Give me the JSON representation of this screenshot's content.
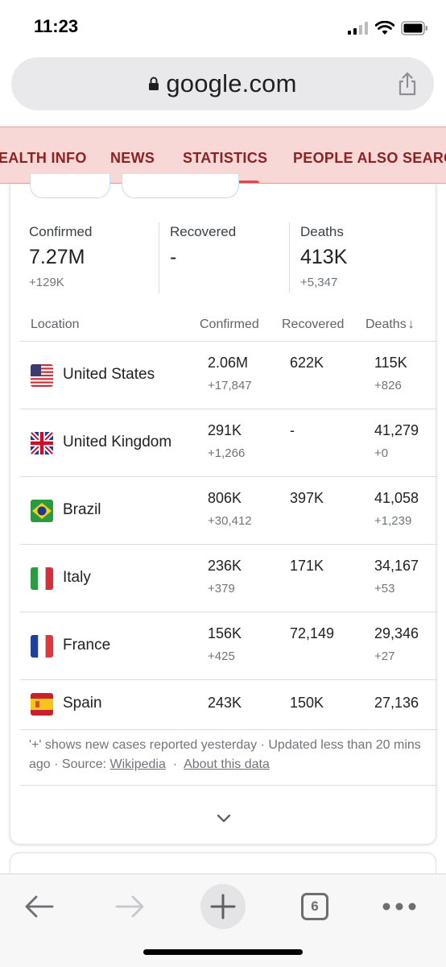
{
  "status_bar": {
    "time": "11:23"
  },
  "url_bar": {
    "domain": "google.com"
  },
  "tabs": [
    {
      "label": "EALTH INFO"
    },
    {
      "label": "NEWS"
    },
    {
      "label": "STATISTICS",
      "active": true
    },
    {
      "label": "PEOPLE ALSO SEARC"
    }
  ],
  "summary": {
    "confirmed": {
      "label": "Confirmed",
      "value": "7.27M",
      "delta": "+129K"
    },
    "recovered": {
      "label": "Recovered",
      "value": "-",
      "delta": ""
    },
    "deaths": {
      "label": "Deaths",
      "value": "413K",
      "delta": "+5,347"
    }
  },
  "table": {
    "headers": {
      "location": "Location",
      "confirmed": "Confirmed",
      "recovered": "Recovered",
      "deaths": "Deaths"
    },
    "sort_indicator": "↓",
    "rows": [
      {
        "country": "United States",
        "flag": "us-flag",
        "confirmed": "2.06M",
        "confirmed_delta": "+17,847",
        "recovered": "622K",
        "deaths": "115K",
        "deaths_delta": "+826"
      },
      {
        "country": "United Kingdom",
        "flag": "uk-flag",
        "confirmed": "291K",
        "confirmed_delta": "+1,266",
        "recovered": "-",
        "deaths": "41,279",
        "deaths_delta": "+0"
      },
      {
        "country": "Brazil",
        "flag": "brazil-flag",
        "confirmed": "806K",
        "confirmed_delta": "+30,412",
        "recovered": "397K",
        "deaths": "41,058",
        "deaths_delta": "+1,239"
      },
      {
        "country": "Italy",
        "flag": "italy-flag",
        "confirmed": "236K",
        "confirmed_delta": "+379",
        "recovered": "171K",
        "deaths": "34,167",
        "deaths_delta": "+53"
      },
      {
        "country": "France",
        "flag": "france-flag",
        "confirmed": "156K",
        "confirmed_delta": "+425",
        "recovered": "72,149",
        "deaths": "29,346",
        "deaths_delta": "+27"
      },
      {
        "country": "Spain",
        "flag": "spain-flag",
        "confirmed": "243K",
        "confirmed_delta": "",
        "recovered": "150K",
        "deaths": "27,136",
        "deaths_delta": ""
      }
    ]
  },
  "footnote": {
    "text": "'+' shows new cases reported yesterday · Updated less than 20 mins ago  ·  Source: ",
    "source_link": "Wikipedia",
    "separator": "  ·  ",
    "about_link": "About this data"
  },
  "toolbar": {
    "tab_count": "6"
  },
  "colors": {
    "tab_bar_bg": "#f8d7d7",
    "tab_text": "#8c2222",
    "tab_underline": "#e34b4b"
  }
}
